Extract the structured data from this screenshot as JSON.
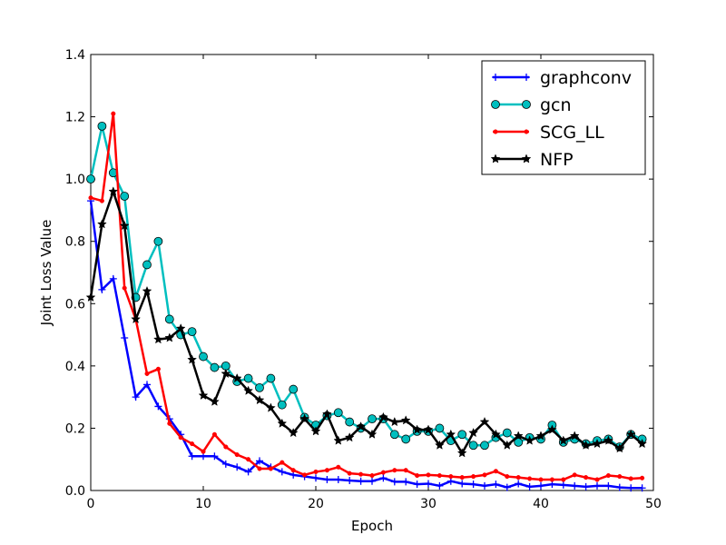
{
  "chart_data": {
    "type": "line",
    "title": "",
    "xlabel": "Epoch",
    "ylabel": "Joint Loss Value",
    "xlim": [
      0,
      50
    ],
    "ylim": [
      0,
      1.4
    ],
    "xticks": [
      0,
      10,
      20,
      30,
      40,
      50
    ],
    "yticks": [
      0.0,
      0.2,
      0.4,
      0.6,
      0.8,
      1.0,
      1.2,
      1.4
    ],
    "xtick_labels": [
      "0",
      "10",
      "20",
      "30",
      "40",
      "50"
    ],
    "ytick_labels": [
      "0.0",
      "0.2",
      "0.4",
      "0.6",
      "0.8",
      "1.0",
      "1.2",
      "1.4"
    ],
    "grid": false,
    "legend_position": "top-right",
    "x": [
      0,
      1,
      2,
      3,
      4,
      5,
      6,
      7,
      8,
      9,
      10,
      11,
      12,
      13,
      14,
      15,
      16,
      17,
      18,
      19,
      20,
      21,
      22,
      23,
      24,
      25,
      26,
      27,
      28,
      29,
      30,
      31,
      32,
      33,
      34,
      35,
      36,
      37,
      38,
      39,
      40,
      41,
      42,
      43,
      44,
      45,
      46,
      47,
      48,
      49
    ],
    "series": [
      {
        "name": "graphconv",
        "color": "#0000ff",
        "marker": "plus",
        "values": [
          0.93,
          0.645,
          0.68,
          0.49,
          0.3,
          0.34,
          0.27,
          0.23,
          0.18,
          0.11,
          0.11,
          0.11,
          0.085,
          0.075,
          0.06,
          0.095,
          0.075,
          0.06,
          0.05,
          0.045,
          0.04,
          0.035,
          0.035,
          0.032,
          0.03,
          0.03,
          0.04,
          0.028,
          0.028,
          0.02,
          0.022,
          0.015,
          0.03,
          0.022,
          0.02,
          0.015,
          0.02,
          0.01,
          0.022,
          0.012,
          0.015,
          0.02,
          0.018,
          0.015,
          0.012,
          0.015,
          0.015,
          0.01,
          0.008,
          0.008
        ]
      },
      {
        "name": "gcn",
        "color": "#00bfbf",
        "marker": "circle",
        "values": [
          1.0,
          1.17,
          1.02,
          0.945,
          0.62,
          0.725,
          0.8,
          0.55,
          0.5,
          0.51,
          0.43,
          0.395,
          0.4,
          0.35,
          0.36,
          0.33,
          0.36,
          0.275,
          0.325,
          0.235,
          0.21,
          0.24,
          0.25,
          0.22,
          0.2,
          0.23,
          0.23,
          0.18,
          0.165,
          0.19,
          0.19,
          0.2,
          0.16,
          0.18,
          0.145,
          0.145,
          0.17,
          0.185,
          0.155,
          0.17,
          0.165,
          0.21,
          0.155,
          0.165,
          0.15,
          0.16,
          0.165,
          0.14,
          0.18,
          0.165
        ]
      },
      {
        "name": "SCG_LL",
        "color": "#ff0000",
        "marker": "dot",
        "values": [
          0.94,
          0.93,
          1.21,
          0.65,
          0.55,
          0.375,
          0.39,
          0.215,
          0.17,
          0.15,
          0.125,
          0.18,
          0.14,
          0.115,
          0.1,
          0.07,
          0.07,
          0.09,
          0.065,
          0.05,
          0.06,
          0.065,
          0.075,
          0.055,
          0.052,
          0.048,
          0.058,
          0.065,
          0.065,
          0.048,
          0.05,
          0.048,
          0.045,
          0.042,
          0.045,
          0.05,
          0.062,
          0.045,
          0.042,
          0.038,
          0.035,
          0.035,
          0.035,
          0.05,
          0.042,
          0.035,
          0.048,
          0.045,
          0.038,
          0.04
        ]
      },
      {
        "name": "NFP",
        "color": "#000000",
        "marker": "star",
        "values": [
          0.62,
          0.855,
          0.96,
          0.85,
          0.55,
          0.64,
          0.485,
          0.49,
          0.52,
          0.42,
          0.305,
          0.285,
          0.375,
          0.36,
          0.32,
          0.29,
          0.265,
          0.215,
          0.185,
          0.23,
          0.19,
          0.245,
          0.16,
          0.17,
          0.205,
          0.18,
          0.235,
          0.22,
          0.225,
          0.195,
          0.195,
          0.145,
          0.18,
          0.12,
          0.185,
          0.22,
          0.18,
          0.145,
          0.175,
          0.16,
          0.175,
          0.195,
          0.16,
          0.175,
          0.145,
          0.15,
          0.16,
          0.135,
          0.18,
          0.15
        ]
      }
    ]
  }
}
